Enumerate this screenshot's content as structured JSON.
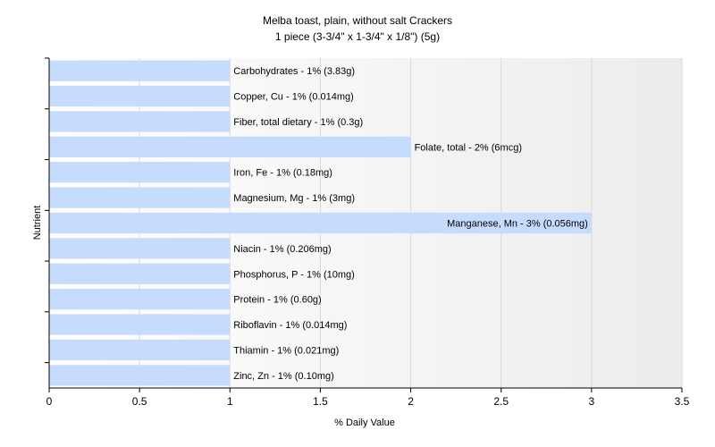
{
  "chart_data": {
    "type": "bar",
    "orientation": "horizontal",
    "title": "Melba toast, plain, without salt Crackers",
    "subtitle": "1 piece (3-3/4\" x 1-3/4\" x 1/8\") (5g)",
    "xlabel": "% Daily Value",
    "ylabel": "Nutrient",
    "xlim": [
      0,
      3.5
    ],
    "xticks": [
      "0",
      "0.5",
      "1",
      "1.5",
      "2",
      "2.5",
      "3",
      "3.5"
    ],
    "grid": "vertical",
    "bar_color": "#c6dcff",
    "categories": [
      "Carbohydrates",
      "Copper, Cu",
      "Fiber, total dietary",
      "Folate, total",
      "Iron, Fe",
      "Magnesium, Mg",
      "Manganese, Mn",
      "Niacin",
      "Phosphorus, P",
      "Protein",
      "Riboflavin",
      "Thiamin",
      "Zinc, Zn"
    ],
    "values": [
      1,
      1,
      1,
      2,
      1,
      1,
      3,
      1,
      1,
      1,
      1,
      1,
      1
    ],
    "labels": [
      "Carbohydrates - 1% (3.83g)",
      "Copper, Cu - 1% (0.014mg)",
      "Fiber, total dietary - 1% (0.3g)",
      "Folate, total - 2% (6mcg)",
      "Iron, Fe - 1% (0.18mg)",
      "Magnesium, Mg - 1% (3mg)",
      "Manganese, Mn - 3% (0.056mg)",
      "Niacin - 1% (0.206mg)",
      "Phosphorus, P - 1% (10mg)",
      "Protein - 1% (0.60g)",
      "Riboflavin - 1% (0.014mg)",
      "Thiamin - 1% (0.021mg)",
      "Zinc, Zn - 1% (0.10mg)"
    ]
  }
}
